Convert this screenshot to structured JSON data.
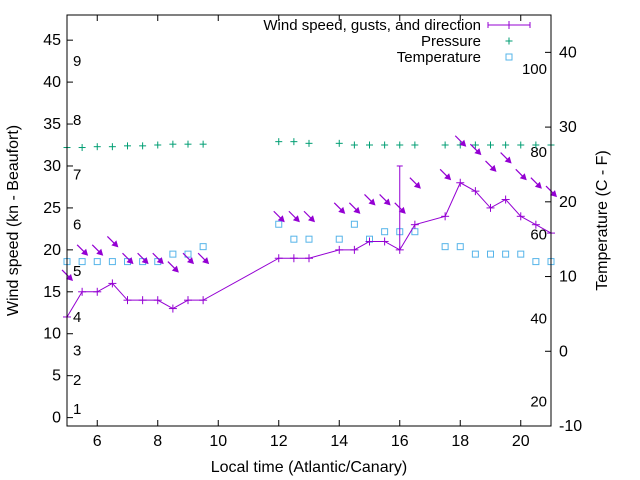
{
  "chart_data": {
    "type": "line",
    "xlabel": "Local time (Atlantic/Canary)",
    "ylabel": "Wind speed (kn - Beaufort)",
    "y2label": "Temperature (C - F)",
    "xlim": [
      5,
      21
    ],
    "ylim": [
      -1,
      48
    ],
    "y2lim": [
      -10,
      45
    ],
    "xticks": [
      6,
      8,
      10,
      12,
      14,
      16,
      18,
      20
    ],
    "yticks": [
      0,
      5,
      10,
      15,
      20,
      25,
      30,
      35,
      40,
      45
    ],
    "y2ticks": [
      -10,
      0,
      10,
      20,
      30,
      40
    ],
    "beaufort_labels": [
      {
        "text": "1",
        "y": 1
      },
      {
        "text": "2",
        "y": 4.5
      },
      {
        "text": "3",
        "y": 8
      },
      {
        "text": "4",
        "y": 12
      },
      {
        "text": "5",
        "y": 17.5
      },
      {
        "text": "6",
        "y": 23
      },
      {
        "text": "7",
        "y": 29
      },
      {
        "text": "8",
        "y": 35.5
      },
      {
        "text": "9",
        "y": 42.5
      }
    ],
    "fahrenheit_labels": [
      {
        "text": "20",
        "y2": -6.7
      },
      {
        "text": "40",
        "y2": 4.4
      },
      {
        "text": "60",
        "y2": 15.6
      },
      {
        "text": "80",
        "y2": 26.7
      },
      {
        "text": "100",
        "y2": 37.8
      }
    ],
    "legend": {
      "position": "top-right",
      "entries": [
        "Wind speed, gusts, and direction",
        "Pressure",
        "Temperature"
      ]
    },
    "colors": {
      "wind": "#9400d3",
      "pressure": "#009e73",
      "temperature": "#56b4e9"
    },
    "series": [
      {
        "name": "Wind speed, gusts, and direction",
        "x": [
          5,
          5.5,
          6,
          6.5,
          7,
          7.5,
          8,
          8.5,
          9,
          9.5,
          12,
          12.5,
          13,
          14,
          14.5,
          15,
          15.5,
          16,
          16.5,
          17.5,
          18,
          18.5,
          19,
          19.5,
          20,
          20.5,
          21
        ],
        "y": [
          12,
          15,
          15,
          16,
          14,
          14,
          14,
          13,
          14,
          14,
          19,
          19,
          19,
          20,
          20,
          21,
          21,
          20,
          23,
          24,
          28,
          27,
          25,
          26,
          24,
          23,
          22
        ],
        "gusts": [
          {
            "x": 16,
            "y": 30
          }
        ]
      },
      {
        "name": "Pressure",
        "x": [
          5,
          5.5,
          6,
          6.5,
          7,
          7.5,
          8,
          8.5,
          9,
          9.5,
          12,
          12.5,
          13,
          14,
          14.5,
          15,
          15.5,
          16,
          16.5,
          17.5,
          18,
          18.5,
          19,
          19.5,
          20,
          20.5,
          21
        ],
        "y": [
          32.2,
          32.2,
          32.3,
          32.3,
          32.4,
          32.4,
          32.5,
          32.6,
          32.6,
          32.6,
          32.9,
          32.9,
          32.7,
          32.7,
          32.5,
          32.5,
          32.5,
          32.5,
          32.5,
          32.5,
          32.5,
          32.5,
          32.5,
          32.5,
          32.5,
          32.5,
          32.5
        ]
      },
      {
        "name": "Temperature",
        "x": [
          5,
          5.5,
          6,
          6.5,
          7,
          7.5,
          8,
          8.5,
          9,
          9.5,
          12,
          12.5,
          13,
          14,
          14.5,
          15,
          15.5,
          16,
          16.5,
          17.5,
          18,
          18.5,
          19,
          19.5,
          20,
          20.5,
          21
        ],
        "y2": [
          12,
          12,
          12,
          12,
          12,
          12,
          12,
          13,
          13,
          14,
          17,
          15,
          15,
          15,
          17,
          15,
          16,
          16,
          16,
          14,
          14,
          13,
          13,
          13,
          13,
          12,
          12
        ]
      }
    ],
    "direction_arrows_at_x": [
      5,
      5.5,
      6,
      6.5,
      7,
      7.5,
      8,
      8.5,
      9,
      9.5,
      12,
      12.5,
      13,
      14,
      14.5,
      15,
      15.5,
      16,
      16.5,
      17.5,
      18,
      18.5,
      19,
      19.5,
      20,
      20.5,
      21
    ]
  }
}
